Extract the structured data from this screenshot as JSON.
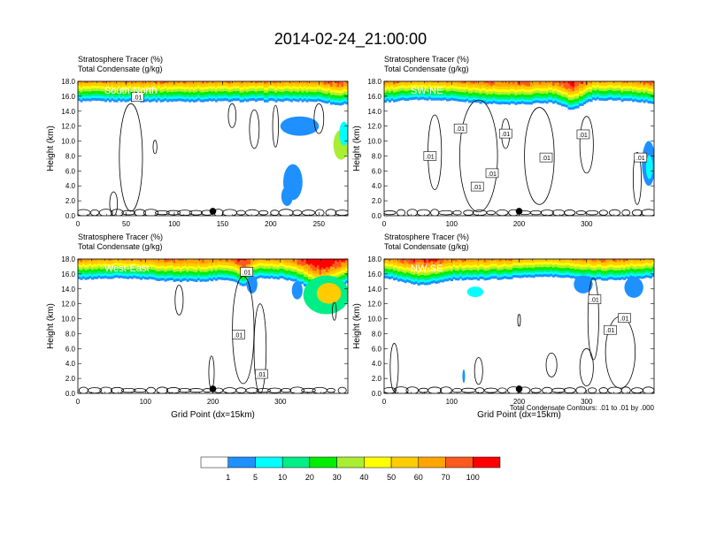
{
  "figure": {
    "title": "2014-02-24_21:00:00",
    "footnote": "Total Condensate Contours: .01 to .01 by .000"
  },
  "colors": {
    "bins": [
      "#ffffff",
      "#1e90ff",
      "#00ffff",
      "#00ee88",
      "#00ee00",
      "#aaee33",
      "#ffff00",
      "#ffcc00",
      "#ffa500",
      "#ff5a1e",
      "#ff0000"
    ],
    "contour": "#000000"
  },
  "colorbar": {
    "labels": [
      "1",
      "5",
      "10",
      "20",
      "30",
      "40",
      "50",
      "60",
      "70",
      "100"
    ]
  },
  "chart_data": [
    {
      "type": "heatmap",
      "label_line1": "Stratosphere Tracer   (%)",
      "label_line2": "Total Condensate   (g/kg)",
      "cross_section": "South-North",
      "ylabel": "Height (km)",
      "xlabel": "",
      "xlim": [
        0,
        280
      ],
      "ylim": [
        0,
        18
      ],
      "xticks": [
        "0",
        "50",
        "100",
        "150",
        "200",
        "250"
      ],
      "xtick_values": [
        0,
        50,
        100,
        150,
        200,
        250
      ],
      "yticks": [
        "0.0",
        "2.0",
        "4.0",
        "6.0",
        "8.0",
        "10.0",
        "12.0",
        "14.0",
        "16.0",
        "18.0"
      ],
      "marker_x": 140,
      "contour_labels": [
        {
          "x": 62,
          "y": 15.9,
          "text": ".01"
        }
      ]
    },
    {
      "type": "heatmap",
      "label_line1": "Stratosphere Tracer   (%)",
      "label_line2": "Total Condensate   (g/kg)",
      "cross_section": "SW-NE",
      "ylabel": "Height (km)",
      "xlabel": "",
      "xlim": [
        0,
        400
      ],
      "ylim": [
        0,
        18
      ],
      "xticks": [
        "0",
        "100",
        "200",
        "300"
      ],
      "xtick_values": [
        0,
        100,
        200,
        300
      ],
      "yticks": [
        "0.0",
        "2.0",
        "4.0",
        "6.0",
        "8.0",
        "10.0",
        "12.0",
        "14.0",
        "16.0",
        "18.0"
      ],
      "marker_x": 200,
      "contour_labels": [
        {
          "x": 113,
          "y": 11.7,
          "text": ".01"
        },
        {
          "x": 180,
          "y": 11.0,
          "text": ".01"
        },
        {
          "x": 295,
          "y": 10.9,
          "text": ".01"
        },
        {
          "x": 68,
          "y": 8.0,
          "text": ".01"
        },
        {
          "x": 240,
          "y": 7.8,
          "text": ".01"
        },
        {
          "x": 160,
          "y": 5.7,
          "text": ".01"
        },
        {
          "x": 138,
          "y": 3.9,
          "text": ".01"
        },
        {
          "x": 380,
          "y": 7.8,
          "text": ".01"
        }
      ]
    },
    {
      "type": "heatmap",
      "label_line1": "Stratosphere Tracer   (%)",
      "label_line2": "Total Condensate   (g/kg)",
      "cross_section": "West-East",
      "ylabel": "Height (km)",
      "xlabel": "Grid Point (dx=15km)",
      "xlim": [
        0,
        400
      ],
      "ylim": [
        0,
        18
      ],
      "xticks": [
        "0",
        "100",
        "200",
        "300"
      ],
      "xtick_values": [
        0,
        100,
        200,
        300
      ],
      "yticks": [
        "0.0",
        "2.0",
        "4.0",
        "6.0",
        "8.0",
        "10.0",
        "12.0",
        "14.0",
        "16.0",
        "18.0"
      ],
      "marker_x": 200,
      "contour_labels": [
        {
          "x": 250,
          "y": 16.3,
          "text": ".01"
        },
        {
          "x": 238,
          "y": 7.9,
          "text": ".01"
        },
        {
          "x": 272,
          "y": 2.6,
          "text": ".01"
        }
      ]
    },
    {
      "type": "heatmap",
      "label_line1": "Stratosphere Tracer   (%)",
      "label_line2": "Total Condensate   (g/kg)",
      "cross_section": "NW-SE",
      "ylabel": "Height (km)",
      "xlabel": "Grid Point (dx=15km)",
      "xlim": [
        0,
        400
      ],
      "ylim": [
        0,
        18
      ],
      "xticks": [
        "0",
        "100",
        "200",
        "300"
      ],
      "xtick_values": [
        0,
        100,
        200,
        300
      ],
      "yticks": [
        "0.0",
        "2.0",
        "4.0",
        "6.0",
        "8.0",
        "10.0",
        "12.0",
        "14.0",
        "16.0",
        "18.0"
      ],
      "marker_x": 200,
      "contour_labels": [
        {
          "x": 312,
          "y": 12.6,
          "text": ".01"
        },
        {
          "x": 356,
          "y": 10.1,
          "text": ".01"
        },
        {
          "x": 335,
          "y": 8.5,
          "text": ".01"
        }
      ]
    }
  ]
}
